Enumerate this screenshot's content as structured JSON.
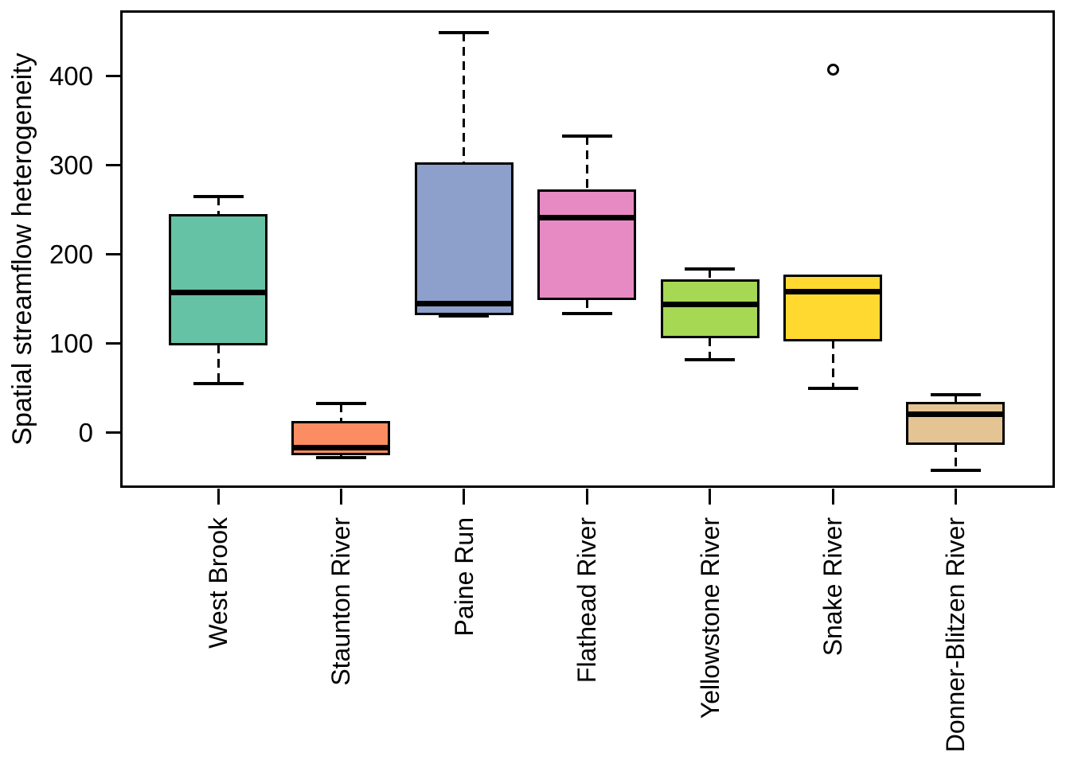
{
  "figure": {
    "background": "#ffffff",
    "axis_color": "#000000"
  },
  "chart_data": {
    "type": "boxplot",
    "title": "",
    "xlabel": "",
    "ylabel": "Spatial streamflow heterogeneity",
    "ylim": [
      -61,
      472
    ],
    "yticks": [
      0,
      100,
      200,
      300,
      400
    ],
    "grid": false,
    "legend": "none",
    "categories": [
      "West Brook",
      "Staunton River",
      "Paine Run",
      "Flathead River",
      "Yellowstone River",
      "Snake River",
      "Donner-Blitzen River"
    ],
    "series": [
      {
        "name": "West Brook",
        "color": "#66C2A5",
        "whisker_low": 55,
        "q1": 99,
        "median": 157,
        "q3": 244,
        "whisker_high": 265,
        "outliers": []
      },
      {
        "name": "Staunton River",
        "color": "#FC8D62",
        "whisker_low": -28,
        "q1": -24,
        "median": -17,
        "q3": 12,
        "whisker_high": 33,
        "outliers": []
      },
      {
        "name": "Paine Run",
        "color": "#8DA0CB",
        "whisker_low": 131,
        "q1": 133,
        "median": 145,
        "q3": 302,
        "whisker_high": 449,
        "outliers": []
      },
      {
        "name": "Flathead River",
        "color": "#E78AC3",
        "whisker_low": 134,
        "q1": 150,
        "median": 241,
        "q3": 272,
        "whisker_high": 333,
        "outliers": []
      },
      {
        "name": "Yellowstone River",
        "color": "#A6D854",
        "whisker_low": 82,
        "q1": 107,
        "median": 144,
        "q3": 171,
        "whisker_high": 184,
        "outliers": []
      },
      {
        "name": "Snake River",
        "color": "#FFD92F",
        "whisker_low": 50,
        "q1": 104,
        "median": 158,
        "q3": 176,
        "whisker_high": 176,
        "outliers": [
          407
        ]
      },
      {
        "name": "Donner-Blitzen River",
        "color": "#E5C494",
        "whisker_low": -42,
        "q1": -12,
        "median": 21,
        "q3": 33,
        "whisker_high": 43,
        "outliers": []
      }
    ]
  }
}
